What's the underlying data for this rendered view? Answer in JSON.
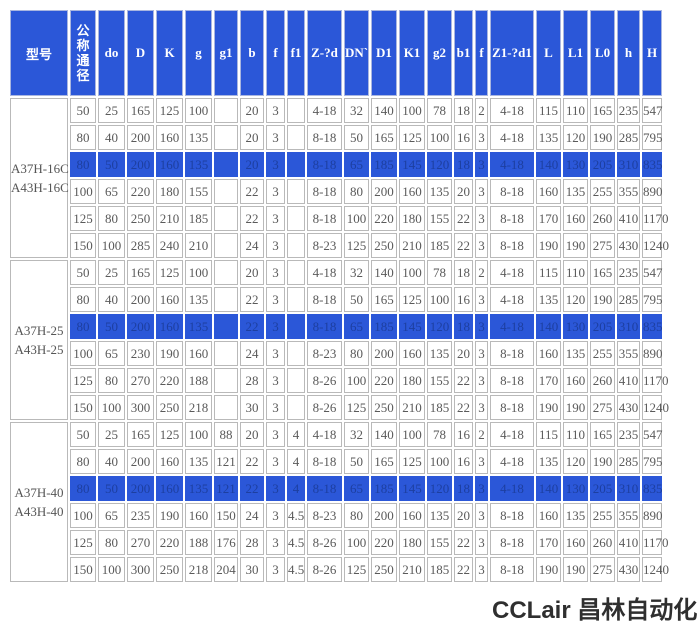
{
  "colors": {
    "accent": "#2b57d8",
    "highlight_text": "#1d3fa0",
    "cell_text": "#5a5a5a",
    "border": "#b9b9b9"
  },
  "watermark": "CCLair 昌林自动化",
  "table": {
    "header": {
      "model_label": "型号",
      "dn_label": "公称通径",
      "columns": [
        "do",
        "D",
        "K",
        "g",
        "g1",
        "b",
        "f",
        "f1",
        "Z-?d",
        "DN`",
        "D1",
        "K1",
        "g2",
        "b1",
        "f",
        "Z1-?d1",
        "L",
        "L1",
        "L0",
        "h",
        "H"
      ]
    },
    "groups": [
      {
        "models": [
          "A37H-16C",
          "A43H-16C"
        ],
        "rows": [
          {
            "highlight": false,
            "cells": [
              "50",
              "25",
              "165",
              "125",
              "100",
              "",
              "20",
              "3",
              "",
              "4-18",
              "32",
              "140",
              "100",
              "78",
              "18",
              "2",
              "4-18",
              "115",
              "110",
              "165",
              "235",
              "547"
            ]
          },
          {
            "highlight": false,
            "cells": [
              "80",
              "40",
              "200",
              "160",
              "135",
              "",
              "20",
              "3",
              "",
              "8-18",
              "50",
              "165",
              "125",
              "100",
              "16",
              "3",
              "4-18",
              "135",
              "120",
              "190",
              "285",
              "795"
            ]
          },
          {
            "highlight": true,
            "cells": [
              "80",
              "50",
              "200",
              "160",
              "135",
              "",
              "20",
              "3",
              "",
              "8-18",
              "65",
              "185",
              "145",
              "120",
              "18",
              "3",
              "4-18",
              "140",
              "130",
              "205",
              "310",
              "835"
            ]
          },
          {
            "highlight": false,
            "cells": [
              "100",
              "65",
              "220",
              "180",
              "155",
              "",
              "22",
              "3",
              "",
              "8-18",
              "80",
              "200",
              "160",
              "135",
              "20",
              "3",
              "8-18",
              "160",
              "135",
              "255",
              "355",
              "890"
            ]
          },
          {
            "highlight": false,
            "cells": [
              "125",
              "80",
              "250",
              "210",
              "185",
              "",
              "22",
              "3",
              "",
              "8-18",
              "100",
              "220",
              "180",
              "155",
              "22",
              "3",
              "8-18",
              "170",
              "160",
              "260",
              "410",
              "1170"
            ]
          },
          {
            "highlight": false,
            "cells": [
              "150",
              "100",
              "285",
              "240",
              "210",
              "",
              "24",
              "3",
              "",
              "8-23",
              "125",
              "250",
              "210",
              "185",
              "22",
              "3",
              "8-18",
              "190",
              "190",
              "275",
              "430",
              "1240"
            ]
          }
        ]
      },
      {
        "models": [
          "A37H-25",
          "A43H-25"
        ],
        "rows": [
          {
            "highlight": false,
            "cells": [
              "50",
              "25",
              "165",
              "125",
              "100",
              "",
              "20",
              "3",
              "",
              "4-18",
              "32",
              "140",
              "100",
              "78",
              "18",
              "2",
              "4-18",
              "115",
              "110",
              "165",
              "235",
              "547"
            ]
          },
          {
            "highlight": false,
            "cells": [
              "80",
              "40",
              "200",
              "160",
              "135",
              "",
              "22",
              "3",
              "",
              "8-18",
              "50",
              "165",
              "125",
              "100",
              "16",
              "3",
              "4-18",
              "135",
              "120",
              "190",
              "285",
              "795"
            ]
          },
          {
            "highlight": true,
            "cells": [
              "80",
              "50",
              "200",
              "160",
              "135",
              "",
              "22",
              "3",
              "",
              "8-18",
              "65",
              "185",
              "145",
              "120",
              "18",
              "3",
              "4-18",
              "140",
              "130",
              "205",
              "310",
              "835"
            ]
          },
          {
            "highlight": false,
            "cells": [
              "100",
              "65",
              "230",
              "190",
              "160",
              "",
              "24",
              "3",
              "",
              "8-23",
              "80",
              "200",
              "160",
              "135",
              "20",
              "3",
              "8-18",
              "160",
              "135",
              "255",
              "355",
              "890"
            ]
          },
          {
            "highlight": false,
            "cells": [
              "125",
              "80",
              "270",
              "220",
              "188",
              "",
              "28",
              "3",
              "",
              "8-26",
              "100",
              "220",
              "180",
              "155",
              "22",
              "3",
              "8-18",
              "170",
              "160",
              "260",
              "410",
              "1170"
            ]
          },
          {
            "highlight": false,
            "cells": [
              "150",
              "100",
              "300",
              "250",
              "218",
              "",
              "30",
              "3",
              "",
              "8-26",
              "125",
              "250",
              "210",
              "185",
              "22",
              "3",
              "8-18",
              "190",
              "190",
              "275",
              "430",
              "1240"
            ]
          }
        ]
      },
      {
        "models": [
          "A37H-40",
          "A43H-40"
        ],
        "rows": [
          {
            "highlight": false,
            "cells": [
              "50",
              "25",
              "165",
              "125",
              "100",
              "88",
              "20",
              "3",
              "4",
              "4-18",
              "32",
              "140",
              "100",
              "78",
              "16",
              "2",
              "4-18",
              "115",
              "110",
              "165",
              "235",
              "547"
            ]
          },
          {
            "highlight": false,
            "cells": [
              "80",
              "40",
              "200",
              "160",
              "135",
              "121",
              "22",
              "3",
              "4",
              "8-18",
              "50",
              "165",
              "125",
              "100",
              "16",
              "3",
              "4-18",
              "135",
              "120",
              "190",
              "285",
              "795"
            ]
          },
          {
            "highlight": true,
            "cells": [
              "80",
              "50",
              "200",
              "160",
              "135",
              "121",
              "22",
              "3",
              "4",
              "8-18",
              "65",
              "185",
              "145",
              "120",
              "18",
              "3",
              "4-18",
              "140",
              "130",
              "205",
              "310",
              "835"
            ]
          },
          {
            "highlight": false,
            "cells": [
              "100",
              "65",
              "235",
              "190",
              "160",
              "150",
              "24",
              "3",
              "4.5",
              "8-23",
              "80",
              "200",
              "160",
              "135",
              "20",
              "3",
              "8-18",
              "160",
              "135",
              "255",
              "355",
              "890"
            ]
          },
          {
            "highlight": false,
            "cells": [
              "125",
              "80",
              "270",
              "220",
              "188",
              "176",
              "28",
              "3",
              "4.5",
              "8-26",
              "100",
              "220",
              "180",
              "155",
              "22",
              "3",
              "8-18",
              "170",
              "160",
              "260",
              "410",
              "1170"
            ]
          },
          {
            "highlight": false,
            "cells": [
              "150",
              "100",
              "300",
              "250",
              "218",
              "204",
              "30",
              "3",
              "4.5",
              "8-26",
              "125",
              "250",
              "210",
              "185",
              "22",
              "3",
              "8-18",
              "190",
              "190",
              "275",
              "430",
              "1240"
            ]
          }
        ]
      }
    ]
  }
}
